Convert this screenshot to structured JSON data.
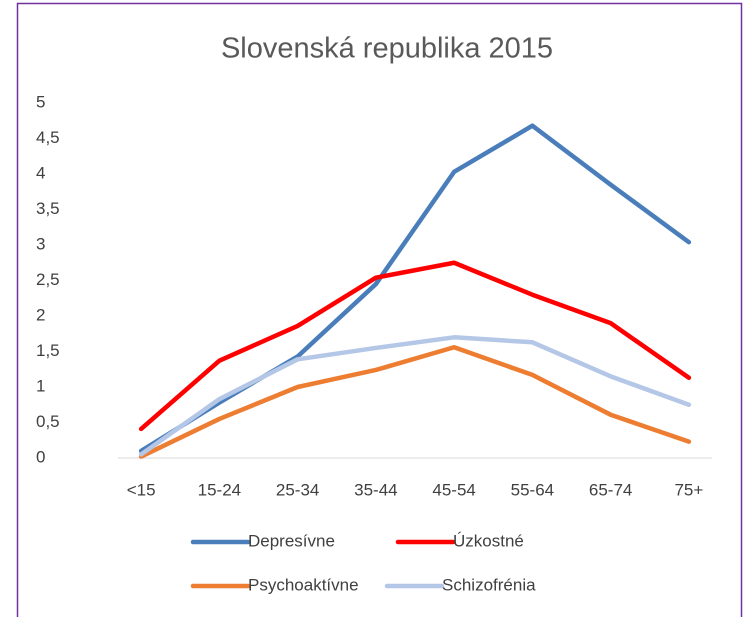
{
  "chart_data": {
    "type": "line",
    "title": "Slovenská republika 2015",
    "categories": [
      "<15",
      "15-24",
      "25-34",
      "35-44",
      "45-54",
      "55-64",
      "65-74",
      "75+"
    ],
    "series": [
      {
        "name": "Depresívne",
        "color": "#4a7ebb",
        "values": [
          0.1,
          0.78,
          1.43,
          2.45,
          4.03,
          4.68,
          3.85,
          3.04
        ]
      },
      {
        "name": "Úzkostné",
        "color": "#ff0000",
        "values": [
          0.41,
          1.37,
          1.86,
          2.54,
          2.75,
          2.3,
          1.9,
          1.13
        ]
      },
      {
        "name": "Psychoaktívne",
        "color": "#ed7d31",
        "values": [
          0.02,
          0.55,
          1.0,
          1.24,
          1.56,
          1.17,
          0.61,
          0.23
        ]
      },
      {
        "name": "Schizofrénia",
        "color": "#b4c7e7",
        "values": [
          0.05,
          0.83,
          1.39,
          1.55,
          1.7,
          1.63,
          1.15,
          0.75
        ]
      }
    ],
    "ylim": [
      0,
      5
    ],
    "yticks": [
      0,
      {
        "value": 0.5,
        "label": "0,5"
      },
      1,
      {
        "value": 1.5,
        "label": "1,5"
      },
      2,
      {
        "value": 2.5,
        "label": "2,5"
      },
      3,
      {
        "value": 3.5,
        "label": "3,5"
      },
      4,
      {
        "value": 4.5,
        "label": "4,5"
      },
      5
    ],
    "grid": false,
    "legend": "bottom"
  }
}
